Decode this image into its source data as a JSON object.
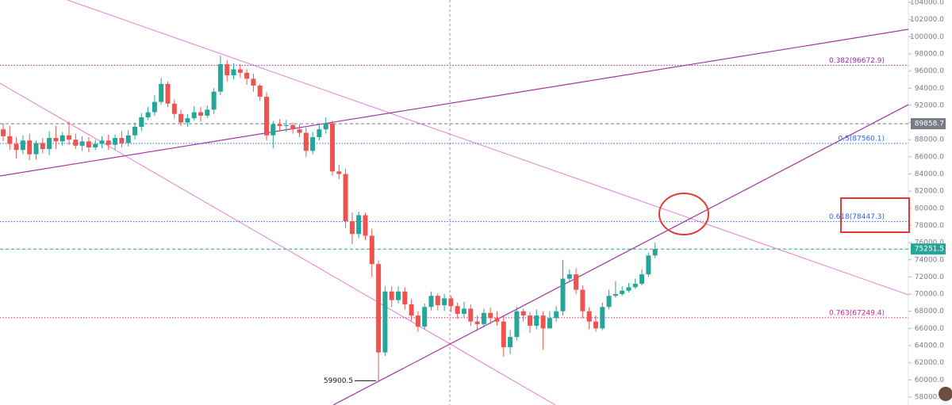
{
  "chart_data": {
    "type": "candlestick",
    "up_color": "#26a69a",
    "down_color": "#ef5350",
    "ylim": [
      57070,
      104280
    ],
    "yticks": [
      {
        "value": 58000,
        "label": "58000.0"
      },
      {
        "value": 60000,
        "label": "60000.0"
      },
      {
        "value": 62000,
        "label": "62000.0"
      },
      {
        "value": 64000,
        "label": "64000.0"
      },
      {
        "value": 66000,
        "label": "66000.0"
      },
      {
        "value": 68000,
        "label": "68000.0"
      },
      {
        "value": 70000,
        "label": "70000.0"
      },
      {
        "value": 72000,
        "label": "72000.0"
      },
      {
        "value": 74000,
        "label": "74000.0"
      },
      {
        "value": 76000,
        "label": "76000.0"
      },
      {
        "value": 78000,
        "label": "78000.0"
      },
      {
        "value": 80000,
        "label": "80000.0"
      },
      {
        "value": 82000,
        "label": "82000.0"
      },
      {
        "value": 84000,
        "label": "84000.0"
      },
      {
        "value": 86000,
        "label": "86000.0"
      },
      {
        "value": 88000,
        "label": "88000.0"
      },
      {
        "value": 90000,
        "label": "90000.0"
      },
      {
        "value": 92000,
        "label": "92000.0"
      },
      {
        "value": 94000,
        "label": "94000.0"
      },
      {
        "value": 96000,
        "label": "96000.0"
      },
      {
        "value": 98000,
        "label": "98000.0"
      },
      {
        "value": 100000,
        "label": "100000.0"
      },
      {
        "value": 102000,
        "label": "102000.0"
      },
      {
        "value": 104000,
        "label": "104000.0"
      }
    ],
    "open": [
      89200,
      88400,
      87500,
      86800,
      87900,
      86300,
      87600,
      86900,
      88200,
      87800,
      88500,
      88000,
      87300,
      87800,
      87100,
      87500,
      87900,
      87400,
      88200,
      87600,
      88500,
      89500,
      90600,
      91200,
      92400,
      94500,
      92200,
      91000,
      90000,
      90500,
      91200,
      90800,
      91500,
      93600,
      96800,
      95500,
      96200,
      95800,
      95100,
      94300,
      93000,
      88500,
      89800,
      89600,
      89700,
      89200,
      88800,
      86700,
      88300,
      89200,
      89900,
      84300,
      84000,
      78500,
      77000,
      79200,
      76800,
      73500,
      63200,
      70300,
      69300,
      70300,
      68800,
      67500,
      66200,
      68500,
      69800,
      68700,
      69500,
      68600,
      67700,
      68300,
      66800,
      66500,
      67800,
      67200,
      66800,
      63800,
      65000,
      68000,
      67500,
      66300,
      67500,
      66000,
      67200,
      68000,
      71800,
      72300,
      70500,
      68000,
      66800,
      66000,
      68500,
      69800,
      70000,
      70400,
      70800,
      71200,
      72300,
      74500
    ],
    "high": [
      89900,
      89600,
      88300,
      88500,
      88700,
      87900,
      88200,
      89000,
      89600,
      88900,
      90100,
      88700,
      88400,
      88300,
      88000,
      88400,
      88600,
      88600,
      89000,
      89100,
      90000,
      91100,
      91800,
      93200,
      95200,
      94800,
      92700,
      91500,
      91000,
      91900,
      91800,
      92000,
      94000,
      97800,
      97300,
      96900,
      96800,
      96200,
      95700,
      94500,
      93500,
      90200,
      90400,
      90300,
      90000,
      89800,
      89400,
      88900,
      89700,
      90600,
      90200,
      85100,
      84600,
      79500,
      79600,
      79500,
      77600,
      73900,
      70900,
      70900,
      70900,
      70800,
      69400,
      68000,
      68900,
      70300,
      70100,
      70000,
      69800,
      69000,
      69100,
      68800,
      67500,
      68300,
      68400,
      68000,
      67400,
      65800,
      68500,
      68300,
      67900,
      68200,
      68000,
      68000,
      68600,
      74000,
      72900,
      73000,
      71000,
      68500,
      67500,
      69000,
      70500,
      71500,
      70900,
      71300,
      71800,
      72900,
      74800,
      76000
    ],
    "low": [
      87800,
      86800,
      85800,
      86300,
      85600,
      85700,
      86400,
      86200,
      86900,
      87300,
      87400,
      86900,
      86700,
      86500,
      86800,
      87000,
      86800,
      86800,
      87100,
      87200,
      88000,
      89000,
      90300,
      90800,
      92100,
      91800,
      90500,
      89600,
      89500,
      90200,
      90100,
      90500,
      91000,
      93200,
      94800,
      95000,
      95200,
      94400,
      93600,
      92500,
      87900,
      87000,
      89100,
      88900,
      88700,
      88300,
      86000,
      86300,
      87900,
      88700,
      83800,
      83400,
      77700,
      75800,
      76500,
      76300,
      72000,
      59900,
      62800,
      68500,
      68900,
      68200,
      66900,
      65600,
      65900,
      68100,
      68100,
      68000,
      67900,
      67100,
      67300,
      66300,
      65700,
      66100,
      66500,
      66300,
      62700,
      63000,
      64600,
      66800,
      65500,
      65900,
      63500,
      66100,
      66800,
      67500,
      71500,
      70000,
      67200,
      65900,
      65600,
      65800,
      68200,
      69600,
      69800,
      70200,
      70600,
      71000,
      72000,
      74200
    ],
    "close": [
      88400,
      87500,
      86800,
      87900,
      86300,
      87600,
      86900,
      88200,
      87800,
      88500,
      88000,
      87300,
      87800,
      87100,
      87500,
      87900,
      87400,
      88200,
      87600,
      88500,
      89500,
      90600,
      91200,
      92400,
      94500,
      92200,
      91000,
      90000,
      90500,
      91200,
      90800,
      91500,
      93600,
      96800,
      95500,
      96200,
      95800,
      95100,
      94300,
      93000,
      88500,
      89800,
      89600,
      89700,
      89200,
      88800,
      86700,
      88300,
      89200,
      89900,
      84300,
      84000,
      78500,
      77000,
      79200,
      76800,
      73500,
      63200,
      70300,
      69300,
      70300,
      68800,
      67500,
      66200,
      68500,
      69800,
      68700,
      69500,
      68600,
      67700,
      68300,
      66800,
      66500,
      67800,
      67200,
      66800,
      63800,
      65000,
      68000,
      67500,
      66300,
      67500,
      66000,
      67200,
      68000,
      71800,
      72300,
      70500,
      68000,
      66800,
      66000,
      68500,
      69800,
      70000,
      70400,
      70800,
      71200,
      72300,
      74500,
      75251.5
    ],
    "levels": [
      {
        "label": "0.382(96672.9)",
        "value": 96672.9,
        "color": "#9c27b0"
      },
      {
        "label": "0.5(87560.1)",
        "value": 87560.1,
        "color": "#2962ff"
      },
      {
        "label": "0.618(78447.3)",
        "value": 78447.3,
        "color": "#2962ff"
      },
      {
        "label": "0.763(67249.4)",
        "value": 67249.4,
        "color": "#d81b9c"
      }
    ],
    "price_lines": [
      {
        "value": 89858.7,
        "color": "#787b86"
      },
      {
        "value": 75251.5,
        "color": "#26a69a"
      }
    ],
    "low_marker": 59900.5
  }
}
